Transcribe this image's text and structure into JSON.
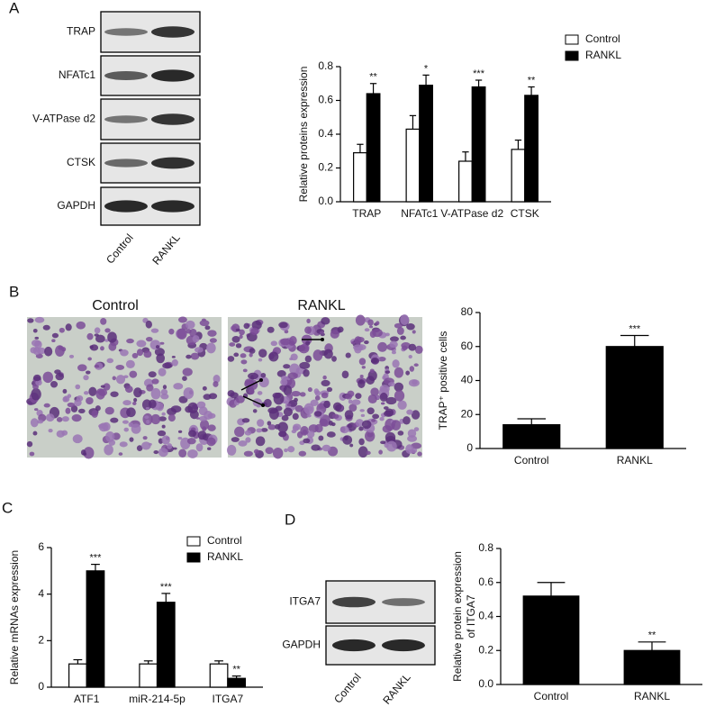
{
  "figure": {
    "panel_labels": [
      "A",
      "B",
      "C",
      "D"
    ]
  },
  "blots": {
    "A": {
      "rows": [
        "TRAP",
        "NFATc1",
        "V-ATPase d2",
        "CTSK",
        "GAPDH"
      ],
      "lanes": [
        "Control",
        "RANKL"
      ]
    },
    "D": {
      "rows": [
        "ITGA7",
        "GAPDH"
      ],
      "lanes": [
        "Control",
        "RANKL"
      ]
    }
  },
  "micrographs": {
    "titles": [
      "Control",
      "RANKL"
    ]
  },
  "chart_data": [
    {
      "type": "bar",
      "ylabel": [
        "Relative proteins expression"
      ],
      "categories": [
        "TRAP",
        "NFATc1",
        "V-ATPase d2",
        "CTSK"
      ],
      "series": [
        {
          "name": "Control",
          "color": "#ffffff",
          "values": [
            0.29,
            0.43,
            0.24,
            0.31
          ],
          "errors": [
            0.05,
            0.08,
            0.055,
            0.055
          ]
        },
        {
          "name": "RANKL",
          "color": "#000000",
          "values": [
            0.64,
            0.69,
            0.68,
            0.63
          ],
          "errors": [
            0.06,
            0.06,
            0.04,
            0.05
          ],
          "annotations": [
            "**",
            "*",
            "***",
            "**"
          ]
        }
      ],
      "ylim": [
        0,
        0.8
      ],
      "yticks": [
        {
          "value": 0,
          "label": "0.0"
        },
        0.2,
        0.4,
        0.6,
        0.8
      ],
      "legend": "upper right"
    },
    {
      "type": "bar",
      "ylabel": [
        "TRAP⁺ positive cells"
      ],
      "categories": [
        "Control",
        "RANKL"
      ],
      "values": [
        14,
        60
      ],
      "errors": [
        3.5,
        6.5
      ],
      "annotations": [
        null,
        "***"
      ],
      "color": "#000000",
      "ylim": [
        0,
        80
      ],
      "yticks": [
        0,
        20,
        40,
        60,
        80
      ]
    },
    {
      "type": "bar",
      "ylabel": [
        "Relative mRNAs expression"
      ],
      "categories": [
        "ATF1",
        "miR-214-5p",
        "ITGA7"
      ],
      "series": [
        {
          "name": "Control",
          "color": "#ffffff",
          "values": [
            1.0,
            1.0,
            1.0
          ],
          "errors": [
            0.18,
            0.13,
            0.13
          ]
        },
        {
          "name": "RANKL",
          "color": "#000000",
          "values": [
            5.0,
            3.65,
            0.38
          ],
          "errors": [
            0.28,
            0.38,
            0.1
          ],
          "annotations": [
            "***",
            "***",
            "**"
          ]
        }
      ],
      "ylim": [
        0,
        6
      ],
      "yticks": [
        0,
        2,
        4,
        6
      ],
      "legend": "upper right"
    },
    {
      "type": "bar",
      "ylabel": [
        "Relative protein expression",
        "of ITGA7"
      ],
      "categories": [
        "Control",
        "RANKL"
      ],
      "values": [
        0.52,
        0.2
      ],
      "errors": [
        0.08,
        0.05
      ],
      "annotations": [
        null,
        "**"
      ],
      "color": "#000000",
      "ylim": [
        0,
        0.8
      ],
      "yticks": [
        {
          "value": 0,
          "label": "0.0"
        },
        0.2,
        0.4,
        0.6,
        0.8
      ]
    }
  ]
}
